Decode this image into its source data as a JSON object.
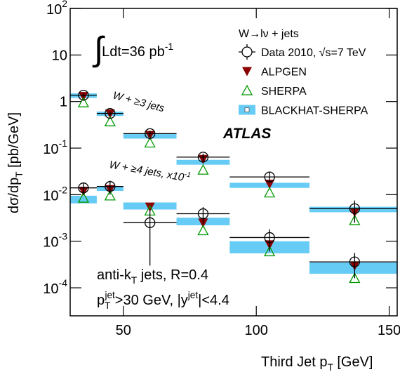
{
  "chart_data": {
    "type": "errorbar",
    "x_label": [
      "Third Jet p",
      "T",
      " [GeV]"
    ],
    "y_label": [
      "dσ/dp",
      "T",
      " [pb/GeV]"
    ],
    "log_y": true,
    "xlim": [
      30,
      153
    ],
    "ylim": [
      2.5e-05,
      100
    ],
    "xticks": [
      50,
      100,
      150
    ],
    "yticks": [
      {
        "value": 0.0001,
        "label": "10",
        "exp": "-4"
      },
      {
        "value": 0.001,
        "label": "10",
        "exp": "-3"
      },
      {
        "value": 0.01,
        "label": "10",
        "exp": "-2"
      },
      {
        "value": 0.1,
        "label": "10",
        "exp": "-1"
      },
      1,
      10,
      {
        "value": 100,
        "label": "10",
        "exp": "2"
      }
    ],
    "bins": [
      30,
      40,
      50,
      70,
      90,
      120,
      155
    ],
    "x": [
      35,
      45,
      60,
      80,
      105,
      137
    ],
    "group_labels": [
      [
        "W + ≥3 jets"
      ],
      [
        "W + ≥4 jets, x10",
        "-1"
      ]
    ],
    "legend": {
      "title": "W→lν + jets",
      "corner": "upper right"
    },
    "series": [
      {
        "name": "Data 2010, √s=7 TeV",
        "marker": "circle",
        "color": "#000000",
        "values": [
          [
            1.37,
            0.555,
            0.205,
            0.064,
            0.024,
            0.005
          ],
          [
            0.014,
            0.015,
            0.0025,
            0.0039,
            0.0012,
            0.00036
          ]
        ],
        "err": [
          [
            0.15,
            0.06,
            0.03,
            0.012,
            0.006,
            0.0025
          ],
          [
            0.004,
            0.005,
            0.0022,
            0.0015,
            0.0006,
            0.0002
          ]
        ]
      },
      {
        "name": "ALPGEN",
        "marker": "triangle-down",
        "color": "#8b0000",
        "values": [
          [
            1.3,
            0.55,
            0.19,
            0.058,
            0.017,
            0.0042
          ],
          [
            0.012,
            0.013,
            0.0055,
            0.0025,
            0.00085,
            0.0003
          ]
        ]
      },
      {
        "name": "SHERPA",
        "marker": "triangle-up",
        "color": "#009900",
        "values": [
          [
            0.95,
            0.37,
            0.13,
            0.034,
            0.011,
            0.0028
          ],
          [
            0.0085,
            0.0095,
            0.0045,
            0.0017,
            0.0006,
            0.00016
          ]
        ]
      },
      {
        "name": "BLACKHAT-SHERPA",
        "marker": "band",
        "color": "#66ccf5",
        "values": [
          [
            1.35,
            0.55,
            0.18,
            0.05,
            0.016,
            0.0048
          ],
          [
            0.008,
            0.013,
            0.0058,
            0.0027,
            0.0008,
            0.00026
          ]
        ],
        "low": [
          [
            1.2,
            0.49,
            0.16,
            0.044,
            0.014,
            0.0042
          ],
          [
            0.0065,
            0.012,
            0.0048,
            0.0022,
            0.00055,
            0.0002
          ]
        ],
        "high": [
          [
            1.5,
            0.61,
            0.2,
            0.056,
            0.018,
            0.0055
          ],
          [
            0.0095,
            0.015,
            0.0068,
            0.0032,
            0.001,
            0.00035
          ]
        ]
      }
    ],
    "annotations": {
      "lumi": [
        "∫",
        "Ldt=36 pb",
        "-1"
      ],
      "atlas": "ATLAS",
      "jets": [
        "anti-k",
        "T",
        " jets, R=0.4"
      ],
      "cuts": [
        "p",
        "T",
        "jet",
        ">30 GeV, |y",
        "jet",
        "|<4.4"
      ]
    }
  }
}
